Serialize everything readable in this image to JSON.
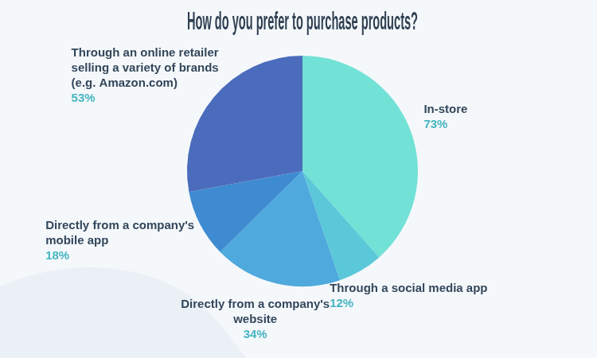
{
  "chart_data": {
    "type": "pie",
    "title": "How do you prefer to purchase products?",
    "categories": [
      "In-store",
      "Through a social media app",
      "Directly from a company's website",
      "Directly from a company's mobile app",
      "Through an online retailer selling a variety of brands (e.g. Amazon.com)"
    ],
    "values": [
      73,
      12,
      34,
      18,
      53
    ],
    "value_labels": [
      "73%",
      "12%",
      "34%",
      "18%",
      "53%"
    ],
    "colors": [
      "#72e1d6",
      "#5bc8d9",
      "#4fa9dc",
      "#3f8bd1",
      "#4b6cbc"
    ],
    "data_labels": true
  }
}
